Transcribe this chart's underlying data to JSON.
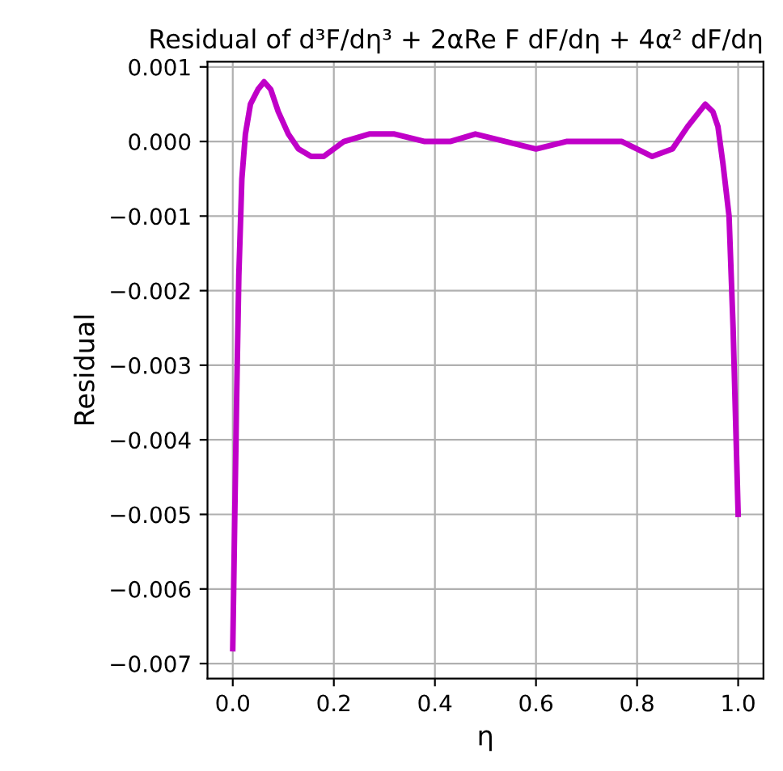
{
  "chart_data": {
    "type": "line",
    "title": "Residual of d³F/dη³ + 2αRe F dF/dη + 4α² dF/dη",
    "xlabel": "η",
    "ylabel": "Residual",
    "x": [
      0,
      0.004,
      0.008,
      0.012,
      0.018,
      0.025,
      0.035,
      0.05,
      0.062,
      0.075,
      0.09,
      0.11,
      0.13,
      0.155,
      0.18,
      0.22,
      0.27,
      0.32,
      0.38,
      0.43,
      0.48,
      0.54,
      0.6,
      0.66,
      0.72,
      0.77,
      0.83,
      0.87,
      0.9,
      0.935,
      0.95,
      0.96,
      0.97,
      0.982,
      0.99,
      1.0
    ],
    "series": [
      {
        "color": "#c000c8",
        "values": [
          -0.0068,
          -0.005,
          -0.0033,
          -0.0018,
          -0.0005,
          0.0001,
          0.0005,
          0.0007,
          0.0008,
          0.0007,
          0.0004,
          0.0001,
          -0.0001,
          -0.0002,
          -0.0002,
          0.0,
          0.0001,
          0.0001,
          0.0,
          0.0,
          0.0001,
          0.0,
          -0.0001,
          0.0,
          0.0,
          0.0,
          -0.0002,
          -0.0001,
          0.0002,
          0.0005,
          0.0004,
          0.0002,
          -0.0003,
          -0.001,
          -0.0025,
          -0.005
        ]
      }
    ],
    "xlim": [
      -0.05,
      1.05
    ],
    "ylim": [
      -0.0072,
      0.00107
    ],
    "xticks": [
      {
        "value": 0,
        "label": "0.0"
      },
      0.2,
      0.4,
      0.6,
      0.8,
      {
        "value": 1,
        "label": "1.0"
      }
    ],
    "yticks": [
      {
        "value": 0.001,
        "label": "0.001"
      },
      {
        "value": 0,
        "label": "0.000"
      },
      {
        "value": -0.001,
        "label": "−0.001"
      },
      {
        "value": -0.002,
        "label": "−0.002"
      },
      {
        "value": -0.003,
        "label": "−0.003"
      },
      {
        "value": -0.004,
        "label": "−0.004"
      },
      {
        "value": -0.005,
        "label": "−0.005"
      },
      {
        "value": -0.006,
        "label": "−0.006"
      },
      {
        "value": -0.007,
        "label": "−0.007"
      }
    ],
    "grid": true,
    "line_style": "solid"
  }
}
